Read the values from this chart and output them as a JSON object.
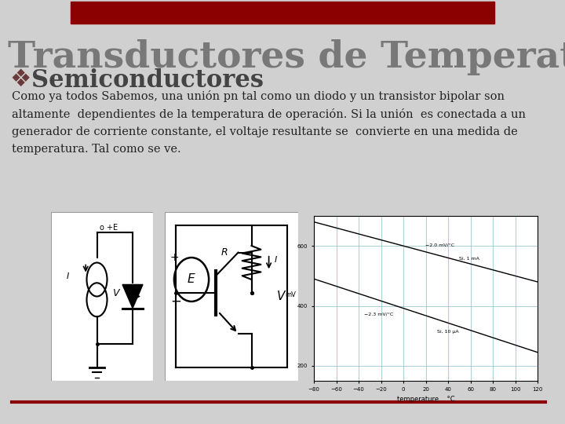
{
  "title": "Transductores de Temperatura",
  "subtitle": "Semiconductores",
  "body_text": "Como ya todos Sabemos, una unión pn tal como un diodo y un transistor bipolar son\naltamente  dependientes de la temperatura de operación. Si la unión  es conectada a un\ngenerador de corriente constante, el voltaje resultante se  convierte en una medida de\ntemperatura. Tal como se ve.",
  "bg_color": "#d0d0d0",
  "title_bg_color": "#8b0000",
  "title_color": "#787878",
  "subtitle_color": "#444444",
  "body_color": "#222222",
  "separator_color": "#8b0000",
  "title_fontsize": 34,
  "subtitle_fontsize": 22,
  "body_fontsize": 10.5
}
